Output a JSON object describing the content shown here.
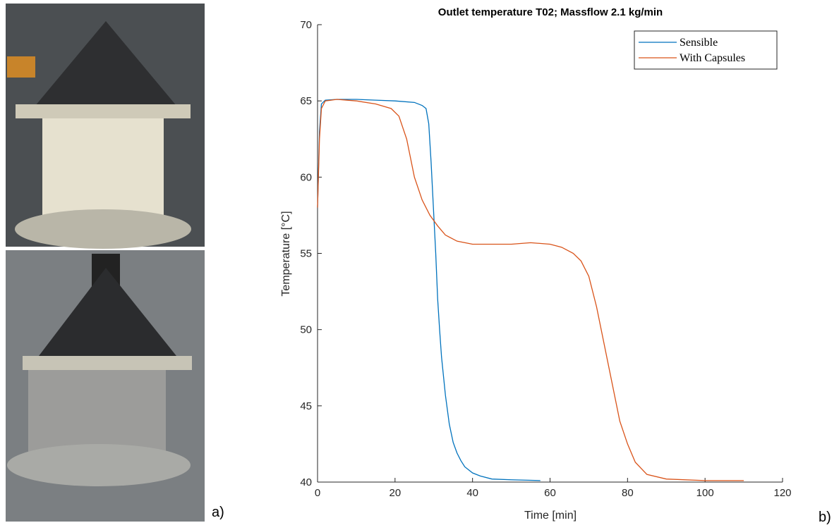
{
  "figure": {
    "panel_labels": [
      "a)",
      "b)"
    ]
  },
  "chart_data": {
    "type": "line",
    "title": "Outlet temperature T02; Massflow 2.1 kg/min",
    "x_label": "Time [min]",
    "y_label": "Temperature [°C]",
    "xlim": [
      0,
      120
    ],
    "xticks": [
      0,
      20,
      40,
      60,
      80,
      100,
      120
    ],
    "ylim": [
      40,
      70
    ],
    "yticks": [
      40,
      45,
      50,
      55,
      60,
      65,
      70
    ],
    "grid": false,
    "legend": "top-right",
    "series": [
      {
        "name": "Sensible",
        "color": "#0072bd",
        "x": [
          0,
          0.5,
          1,
          2,
          5,
          10,
          15,
          20,
          25,
          27,
          28,
          28.7,
          29.3,
          30,
          30.5,
          31,
          31.5,
          32,
          33,
          34,
          35,
          36,
          37,
          38,
          40,
          42,
          45,
          50,
          57.5
        ],
        "values": [
          58,
          63,
          64.8,
          65.05,
          65.1,
          65.1,
          65.05,
          65,
          64.9,
          64.7,
          64.5,
          63.5,
          61,
          57.5,
          55,
          52,
          50,
          48.2,
          45.7,
          43.8,
          42.6,
          41.9,
          41.4,
          41,
          40.6,
          40.4,
          40.2,
          40.15,
          40.1
        ]
      },
      {
        "name": "With Capsules",
        "color": "#d95319",
        "x": [
          0,
          0.5,
          1,
          2,
          5,
          10,
          15,
          19,
          21,
          23,
          25,
          27,
          29,
          31,
          33,
          36,
          40,
          45,
          50,
          55,
          60,
          63,
          66,
          68,
          70,
          72,
          74,
          76,
          78,
          80,
          82,
          85,
          90,
          100,
          110
        ],
        "values": [
          58,
          62.5,
          64.5,
          65,
          65.1,
          65,
          64.8,
          64.5,
          64,
          62.5,
          60,
          58.5,
          57.5,
          56.8,
          56.2,
          55.8,
          55.6,
          55.6,
          55.6,
          55.7,
          55.6,
          55.4,
          55,
          54.5,
          53.5,
          51.5,
          49,
          46.5,
          44,
          42.5,
          41.3,
          40.5,
          40.2,
          40.1,
          40.1
        ]
      }
    ]
  }
}
